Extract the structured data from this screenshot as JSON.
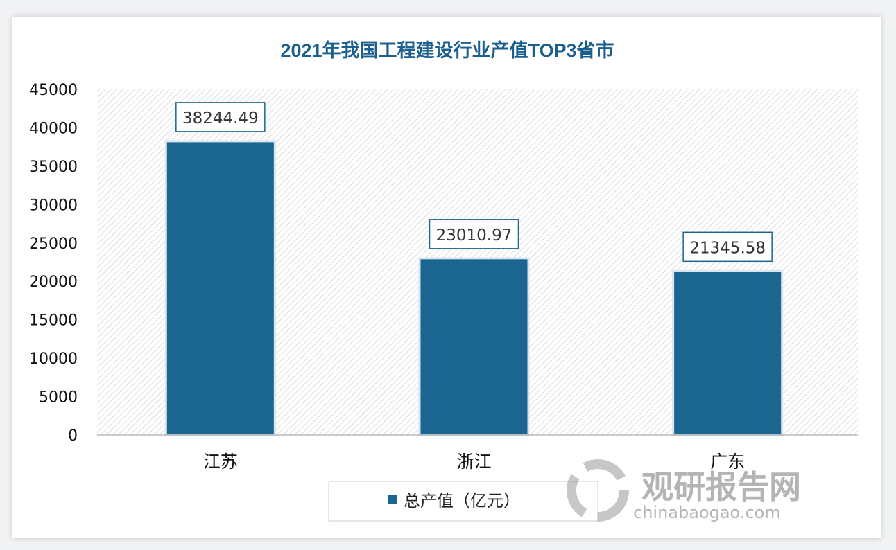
{
  "chart_data": {
    "type": "bar",
    "title": "2021年我国工程建设行业产值TOP3省市",
    "categories": [
      "江苏",
      "浙江",
      "广东"
    ],
    "series": [
      {
        "name": "总产值（亿元）",
        "values": [
          38244.49,
          23010.97,
          21345.58
        ]
      }
    ],
    "data_labels": [
      "38244.49",
      "23010.97",
      "21345.58"
    ],
    "ylim": [
      0,
      45000
    ],
    "yticks": [
      "0",
      "5000",
      "10000",
      "15000",
      "20000",
      "25000",
      "30000",
      "35000",
      "40000",
      "45000"
    ],
    "legend_position": "bottom",
    "grid": false,
    "plot_background": "diagonal-hatch",
    "colors": {
      "bar": "#1a6690",
      "title": "#1a5f8e"
    }
  },
  "watermark": {
    "brand": "观研报告网",
    "url": "chinabaogao.com"
  }
}
